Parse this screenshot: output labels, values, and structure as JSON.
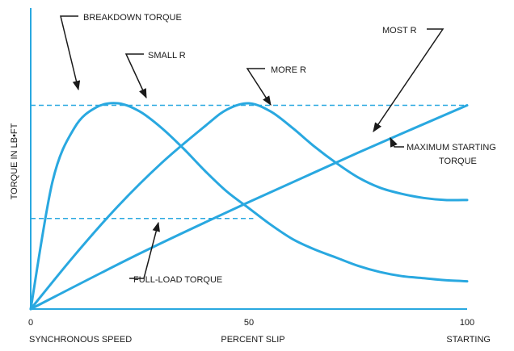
{
  "chart_data": {
    "type": "line",
    "title": "",
    "xlabel": "PERCENT SLIP",
    "ylabel": "TORQUE IN LB•FT",
    "x_left_label": "SYNCHRONOUS SPEED",
    "x_right_label": "STARTING",
    "xlim": [
      0,
      100
    ],
    "ylim": [
      0,
      100
    ],
    "x_ticks": [
      {
        "value": 0,
        "label": "0"
      },
      {
        "value": 50,
        "label": "50"
      },
      {
        "value": 100,
        "label": "100"
      }
    ],
    "grid": false,
    "colors": {
      "curve": "#29a8e0",
      "axis": "#29a8e0",
      "annotation": "#1a1a1a"
    },
    "series": [
      {
        "name": "SMALL R",
        "x": [
          0,
          5,
          10,
          15,
          20,
          25,
          30,
          35,
          40,
          45,
          50,
          55,
          60,
          65,
          70,
          75,
          80,
          85,
          90,
          95,
          100
        ],
        "y": [
          0,
          62,
          88,
          98,
          100,
          96,
          88,
          78,
          67,
          57,
          49,
          41,
          34,
          29,
          25,
          21,
          18,
          16,
          15,
          14,
          13.5
        ]
      },
      {
        "name": "MORE R",
        "x": [
          0,
          10,
          20,
          30,
          40,
          45,
          50,
          55,
          60,
          65,
          70,
          75,
          80,
          85,
          90,
          95,
          100
        ],
        "y": [
          0,
          26,
          50,
          71,
          89,
          97,
          100,
          96,
          88,
          79,
          71,
          64,
          59,
          56,
          54,
          53,
          53
        ]
      },
      {
        "name": "MOST R",
        "x": [
          0,
          25,
          50,
          75,
          100
        ],
        "y": [
          0,
          27,
          52,
          76,
          99
        ]
      }
    ],
    "reference_lines": [
      {
        "name": "BREAKDOWN TORQUE",
        "y": 99,
        "x_start": 0,
        "x_end": 100,
        "style": "dashed"
      },
      {
        "name": "FULL-LOAD TORQUE",
        "y": 44,
        "x_start": 0,
        "x_end": 51,
        "style": "dashed"
      }
    ],
    "annotations": [
      {
        "text": "BREAKDOWN TORQUE"
      },
      {
        "text": "SMALL R"
      },
      {
        "text": "MORE R"
      },
      {
        "text": "MOST R"
      },
      {
        "text": "MAXIMUM STARTING"
      },
      {
        "text": "TORQUE"
      },
      {
        "text": "FULL-LOAD TORQUE"
      }
    ]
  }
}
